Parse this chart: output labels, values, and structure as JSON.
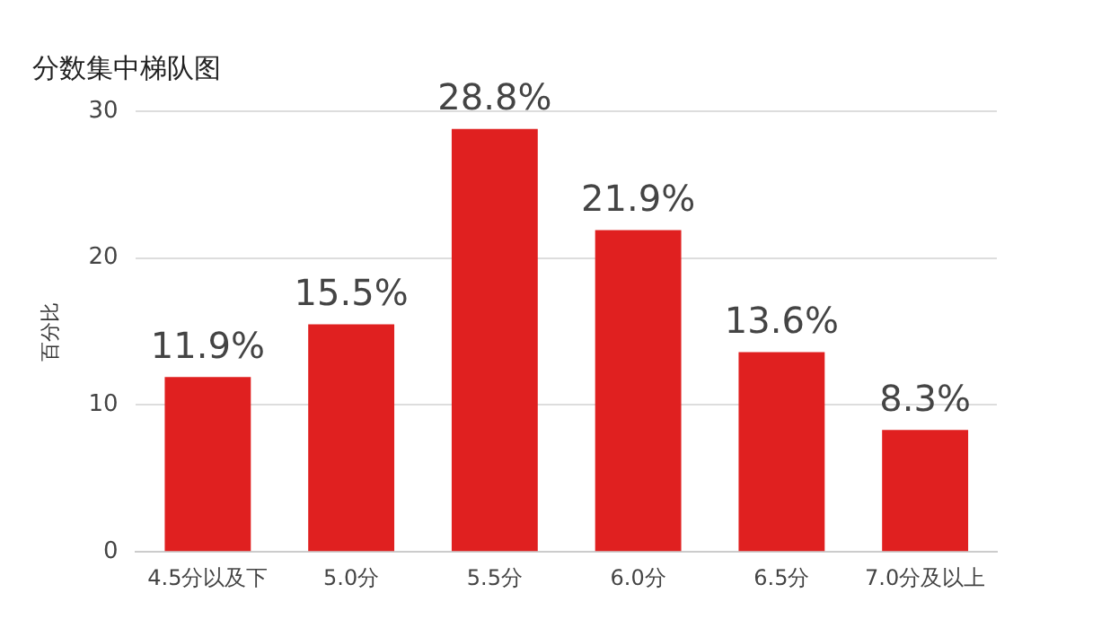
{
  "chart_data": {
    "type": "bar",
    "title": "分数集中梯队图",
    "ylabel": "百分比",
    "categories": [
      "4.5分以及下",
      "5.0分",
      "5.5分",
      "6.0分",
      "6.5分",
      "7.0分及以上"
    ],
    "values": [
      11.9,
      15.5,
      28.8,
      21.9,
      13.6,
      8.3
    ],
    "value_labels": [
      "11.9%",
      "15.5%",
      "28.8%",
      "21.9%",
      "13.6%",
      "8.3%"
    ],
    "color": "#e02020",
    "ylim": [
      0,
      30
    ],
    "yticks": [
      0,
      10,
      20,
      30
    ],
    "grid": "y",
    "legend": false
  }
}
